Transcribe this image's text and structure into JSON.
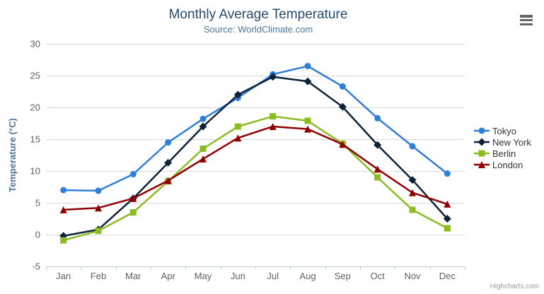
{
  "chart_data": {
    "type": "line",
    "title": "Monthly Average Temperature",
    "subtitle": "Source: WorldClimate.com",
    "xlabel": "",
    "ylabel": "Temperature (°C)",
    "categories": [
      "Jan",
      "Feb",
      "Mar",
      "Apr",
      "May",
      "Jun",
      "Jul",
      "Aug",
      "Sep",
      "Oct",
      "Nov",
      "Dec"
    ],
    "ylim": [
      -5,
      30
    ],
    "ytick_step": 5,
    "grid": true,
    "legend_position": "right",
    "series": [
      {
        "name": "Tokyo",
        "color": "#2f7ed8",
        "marker": "circle",
        "values": [
          7.0,
          6.9,
          9.5,
          14.5,
          18.2,
          21.5,
          25.2,
          26.5,
          23.3,
          18.3,
          13.9,
          9.6
        ]
      },
      {
        "name": "New York",
        "color": "#0d233a",
        "marker": "diamond",
        "values": [
          -0.2,
          0.8,
          5.7,
          11.3,
          17.0,
          22.0,
          24.8,
          24.1,
          20.1,
          14.1,
          8.6,
          2.5
        ]
      },
      {
        "name": "Berlin",
        "color": "#8bbc21",
        "marker": "square",
        "values": [
          -0.9,
          0.6,
          3.5,
          8.4,
          13.5,
          17.0,
          18.6,
          17.9,
          14.3,
          9.0,
          3.9,
          1.0
        ]
      },
      {
        "name": "London",
        "color": "#910000",
        "marker": "triangle",
        "values": [
          3.9,
          4.2,
          5.7,
          8.5,
          11.9,
          15.2,
          17.0,
          16.6,
          14.2,
          10.3,
          6.6,
          4.8
        ]
      }
    ]
  },
  "header": {
    "export_icon": "hamburger-menu-icon"
  },
  "credits": {
    "text": "Highcharts.com"
  }
}
